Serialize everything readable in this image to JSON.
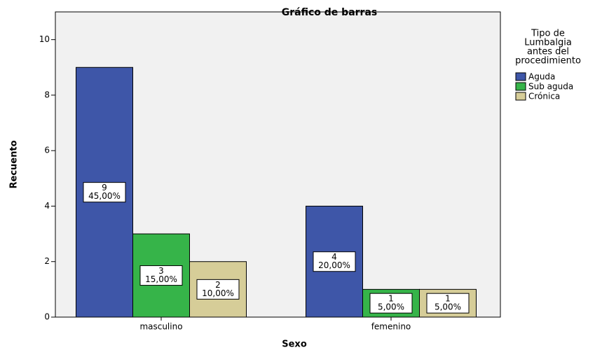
{
  "chart_data": {
    "type": "bar",
    "title": "Gráfico de barras",
    "x_label": "Sexo",
    "y_label": "Recuento",
    "categories": [
      "masculino",
      "femenino"
    ],
    "series": [
      {
        "name": "Aguda",
        "color": "#3e56a8",
        "values": [
          9,
          4
        ],
        "percent_labels": [
          "45,00%",
          "20,00%"
        ]
      },
      {
        "name": "Sub aguda",
        "color": "#36b449",
        "values": [
          3,
          1
        ],
        "percent_labels": [
          "15,00%",
          "5,00%"
        ]
      },
      {
        "name": "Crónica",
        "color": "#d6cd98",
        "values": [
          2,
          1
        ],
        "percent_labels": [
          "10,00%",
          "5,00%"
        ]
      }
    ],
    "legend_title": [
      "Tipo de",
      "Lumbalgia",
      "antes del",
      "procedimiento"
    ],
    "legend_position": "right",
    "ylim": [
      0,
      11
    ],
    "yticks": [
      0,
      2,
      4,
      6,
      8,
      10
    ]
  }
}
